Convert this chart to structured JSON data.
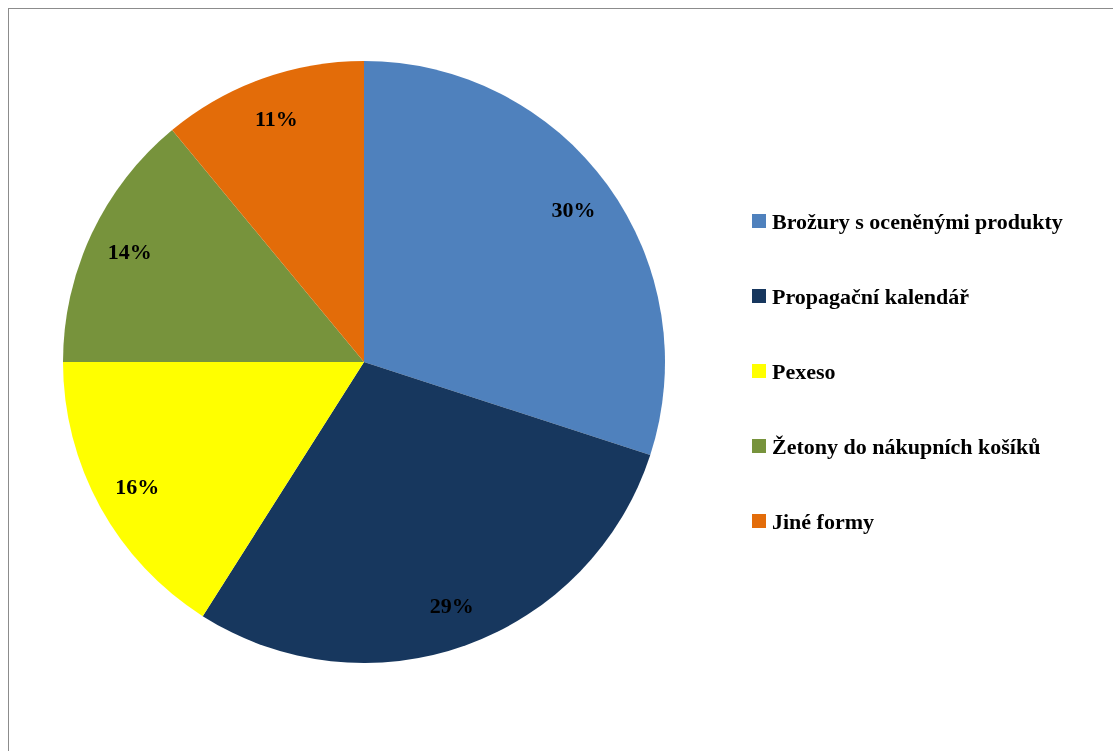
{
  "chart_data": {
    "type": "pie",
    "categories": [
      "Brožury s oceněnými produkty",
      "Propagační kalendář",
      "Pexeso",
      "Žetony do nákupních košíků",
      "Jiné formy"
    ],
    "values": [
      30,
      29,
      16,
      14,
      11
    ],
    "colors": [
      "#4f81bd",
      "#17375e",
      "#ffff00",
      "#77933c",
      "#e36c09"
    ],
    "value_labels": [
      "30%",
      "29%",
      "16%",
      "14%",
      "11%"
    ],
    "legend": "right"
  }
}
